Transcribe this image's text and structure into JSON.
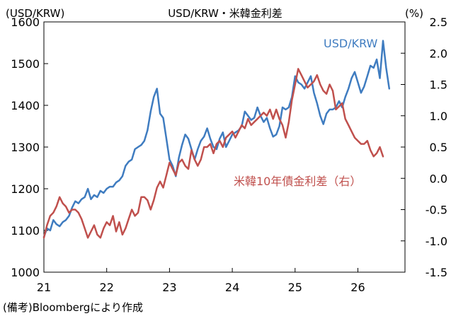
{
  "chart_data": {
    "type": "line",
    "title": "USD/KRW・米韓金利差",
    "left_axis_label": "(USD/KRW)",
    "right_axis_label": "(%)",
    "source_note": "(備考)Bloombergにより作成",
    "x_ticks": [
      "21",
      "22",
      "23",
      "24",
      "25",
      "26"
    ],
    "xlim": [
      2021.0,
      2026.75
    ],
    "y_left": {
      "ticks": [
        "1000",
        "1100",
        "1200",
        "1300",
        "1400",
        "1500",
        "1600"
      ],
      "lim": [
        1000,
        1600
      ]
    },
    "y_right": {
      "ticks": [
        "2.5",
        "2.0",
        "1.5",
        "1.0",
        "0.5",
        "0.0",
        "-0.5",
        "-1.0",
        "-1.5"
      ],
      "lim": [
        -1.5,
        2.5
      ]
    },
    "grid": false,
    "series": [
      {
        "name": "USD/KRW",
        "axis": "left",
        "color": "#3f7cc0",
        "x": [
          2021.0,
          2021.05,
          2021.1,
          2021.15,
          2021.2,
          2021.25,
          2021.3,
          2021.35,
          2021.4,
          2021.45,
          2021.5,
          2021.55,
          2021.6,
          2021.65,
          2021.7,
          2021.75,
          2021.8,
          2021.85,
          2021.9,
          2021.95,
          2022.0,
          2022.05,
          2022.1,
          2022.15,
          2022.2,
          2022.25,
          2022.3,
          2022.35,
          2022.4,
          2022.45,
          2022.5,
          2022.55,
          2022.6,
          2022.65,
          2022.7,
          2022.75,
          2022.8,
          2022.85,
          2022.9,
          2022.95,
          2023.0,
          2023.05,
          2023.1,
          2023.15,
          2023.2,
          2023.25,
          2023.3,
          2023.35,
          2023.4,
          2023.45,
          2023.5,
          2023.55,
          2023.6,
          2023.65,
          2023.7,
          2023.75,
          2023.8,
          2023.85,
          2023.9,
          2023.95,
          2024.0,
          2024.05,
          2024.1,
          2024.15,
          2024.2,
          2024.25,
          2024.3,
          2024.35,
          2024.4,
          2024.45,
          2024.5,
          2024.55,
          2024.6,
          2024.65,
          2024.7,
          2024.75,
          2024.8,
          2024.85,
          2024.9,
          2024.95,
          2025.0,
          2025.05,
          2025.1,
          2025.15,
          2025.2,
          2025.25,
          2025.3,
          2025.35,
          2025.4,
          2025.45,
          2025.5,
          2025.55,
          2025.6,
          2025.65,
          2025.7,
          2025.75,
          2025.8,
          2025.85,
          2025.9,
          2025.95,
          2026.0,
          2026.05,
          2026.1,
          2026.15,
          2026.2,
          2026.25,
          2026.3,
          2026.35,
          2026.4,
          2026.45,
          2026.5
        ],
        "values": [
          1085,
          1105,
          1100,
          1125,
          1115,
          1110,
          1120,
          1125,
          1135,
          1155,
          1170,
          1165,
          1175,
          1180,
          1200,
          1175,
          1185,
          1180,
          1195,
          1190,
          1200,
          1205,
          1205,
          1215,
          1220,
          1230,
          1255,
          1265,
          1270,
          1295,
          1300,
          1305,
          1315,
          1340,
          1385,
          1420,
          1440,
          1380,
          1370,
          1320,
          1270,
          1255,
          1230,
          1275,
          1305,
          1330,
          1320,
          1295,
          1270,
          1295,
          1315,
          1325,
          1345,
          1320,
          1300,
          1295,
          1320,
          1335,
          1300,
          1315,
          1330,
          1335,
          1340,
          1350,
          1385,
          1375,
          1365,
          1370,
          1395,
          1375,
          1360,
          1370,
          1345,
          1325,
          1330,
          1350,
          1395,
          1390,
          1395,
          1420,
          1470,
          1455,
          1450,
          1440,
          1455,
          1470,
          1430,
          1405,
          1375,
          1355,
          1380,
          1390,
          1390,
          1395,
          1410,
          1395,
          1420,
          1440,
          1465,
          1480,
          1455,
          1430,
          1445,
          1470,
          1495,
          1490,
          1510,
          1465,
          1555,
          1490,
          1440
        ]
      },
      {
        "name": "米韓10年債金利差（右）",
        "axis": "right",
        "color": "#c0504d",
        "x": [
          2021.0,
          2021.05,
          2021.1,
          2021.15,
          2021.2,
          2021.25,
          2021.3,
          2021.35,
          2021.4,
          2021.45,
          2021.5,
          2021.55,
          2021.6,
          2021.65,
          2021.7,
          2021.75,
          2021.8,
          2021.85,
          2021.9,
          2021.95,
          2022.0,
          2022.05,
          2022.1,
          2022.15,
          2022.2,
          2022.25,
          2022.3,
          2022.35,
          2022.4,
          2022.45,
          2022.5,
          2022.55,
          2022.6,
          2022.65,
          2022.7,
          2022.75,
          2022.8,
          2022.85,
          2022.9,
          2022.95,
          2023.0,
          2023.05,
          2023.1,
          2023.15,
          2023.2,
          2023.25,
          2023.3,
          2023.35,
          2023.4,
          2023.45,
          2023.5,
          2023.55,
          2023.6,
          2023.65,
          2023.7,
          2023.75,
          2023.8,
          2023.85,
          2023.9,
          2023.95,
          2024.0,
          2024.05,
          2024.1,
          2024.15,
          2024.2,
          2024.25,
          2024.3,
          2024.35,
          2024.4,
          2024.45,
          2024.5,
          2024.55,
          2024.6,
          2024.65,
          2024.7,
          2024.75,
          2024.8,
          2024.85,
          2024.9,
          2024.95,
          2025.0,
          2025.05,
          2025.1,
          2025.15,
          2025.2,
          2025.25,
          2025.3,
          2025.35,
          2025.4,
          2025.45,
          2025.5,
          2025.55,
          2025.6,
          2025.65,
          2025.7,
          2025.75,
          2025.8,
          2025.85,
          2025.9,
          2025.95,
          2026.0,
          2026.05,
          2026.1,
          2026.15,
          2026.2,
          2026.25,
          2026.3,
          2026.35,
          2026.4
        ],
        "values": [
          -0.95,
          -0.75,
          -0.6,
          -0.55,
          -0.45,
          -0.3,
          -0.4,
          -0.45,
          -0.55,
          -0.5,
          -0.5,
          -0.55,
          -0.65,
          -0.8,
          -0.95,
          -0.85,
          -0.75,
          -0.9,
          -0.95,
          -0.8,
          -0.7,
          -0.75,
          -0.6,
          -0.85,
          -0.7,
          -0.9,
          -0.8,
          -0.65,
          -0.5,
          -0.6,
          -0.55,
          -0.3,
          -0.3,
          -0.35,
          -0.5,
          -0.35,
          -0.15,
          -0.05,
          -0.15,
          0.05,
          0.25,
          0.15,
          0.05,
          0.25,
          0.3,
          0.2,
          0.15,
          0.45,
          0.3,
          0.2,
          0.3,
          0.5,
          0.5,
          0.55,
          0.4,
          0.55,
          0.6,
          0.5,
          0.65,
          0.7,
          0.75,
          0.65,
          0.75,
          0.85,
          0.8,
          0.95,
          0.85,
          0.9,
          0.95,
          1.0,
          1.05,
          1.0,
          1.1,
          0.95,
          1.1,
          0.95,
          0.85,
          0.65,
          0.9,
          1.25,
          1.5,
          1.75,
          1.65,
          1.55,
          1.45,
          1.5,
          1.55,
          1.65,
          1.5,
          1.4,
          1.35,
          1.5,
          1.4,
          1.1,
          1.15,
          1.2,
          0.95,
          0.85,
          0.75,
          0.65,
          0.6,
          0.55,
          0.55,
          0.6,
          0.45,
          0.35,
          0.4,
          0.5,
          0.35
        ]
      }
    ]
  }
}
